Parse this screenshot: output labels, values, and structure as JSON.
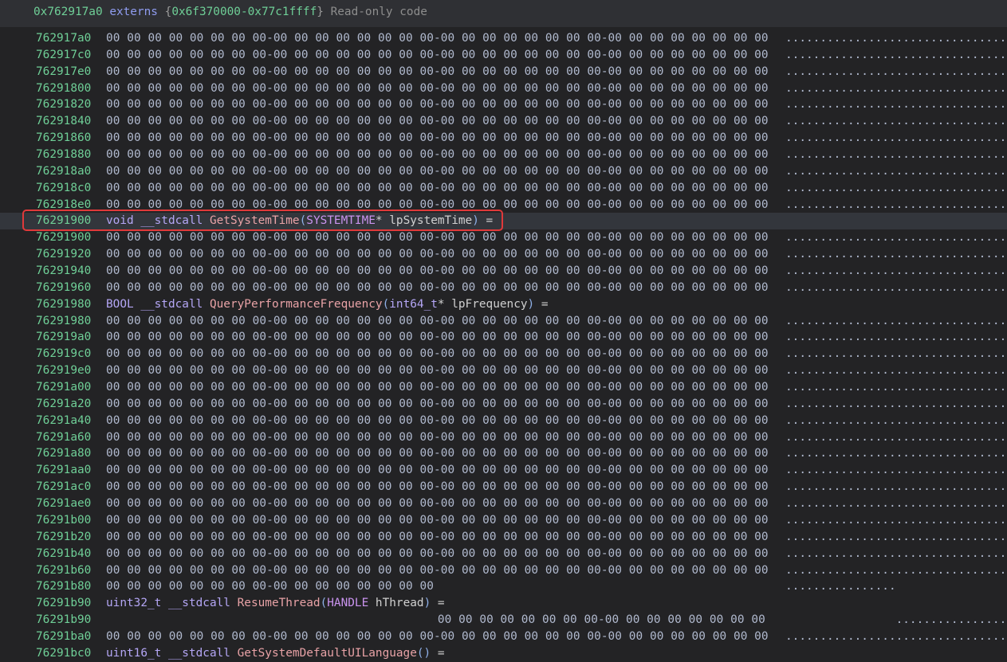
{
  "header": {
    "address": "0x762917a0",
    "segment": "externs",
    "brace_open": "{",
    "range": "0x6f370000-0x77c1ffff",
    "brace_close": "}",
    "description": "Read-only code"
  },
  "colors": {
    "address": "#6fcf97",
    "highlight_border": "#e0393a",
    "background": "#232325"
  },
  "highlighted_row": 11,
  "rows": [
    {
      "addr": "762917a0",
      "bytes": "00 00 00 00 00 00 00 00-00 00 00 00 00 00 00 00-00 00 00 00 00 00 00 00-00 00 00 00 00 00 00 00",
      "ascii": "................................"
    },
    {
      "addr": "762917c0",
      "bytes": "00 00 00 00 00 00 00 00-00 00 00 00 00 00 00 00-00 00 00 00 00 00 00 00-00 00 00 00 00 00 00 00",
      "ascii": "................................"
    },
    {
      "addr": "762917e0",
      "bytes": "00 00 00 00 00 00 00 00-00 00 00 00 00 00 00 00-00 00 00 00 00 00 00 00-00 00 00 00 00 00 00 00",
      "ascii": "................................"
    },
    {
      "addr": "76291800",
      "bytes": "00 00 00 00 00 00 00 00-00 00 00 00 00 00 00 00-00 00 00 00 00 00 00 00-00 00 00 00 00 00 00 00",
      "ascii": "................................"
    },
    {
      "addr": "76291820",
      "bytes": "00 00 00 00 00 00 00 00-00 00 00 00 00 00 00 00-00 00 00 00 00 00 00 00-00 00 00 00 00 00 00 00",
      "ascii": "................................"
    },
    {
      "addr": "76291840",
      "bytes": "00 00 00 00 00 00 00 00-00 00 00 00 00 00 00 00-00 00 00 00 00 00 00 00-00 00 00 00 00 00 00 00",
      "ascii": "................................"
    },
    {
      "addr": "76291860",
      "bytes": "00 00 00 00 00 00 00 00-00 00 00 00 00 00 00 00-00 00 00 00 00 00 00 00-00 00 00 00 00 00 00 00",
      "ascii": "................................"
    },
    {
      "addr": "76291880",
      "bytes": "00 00 00 00 00 00 00 00-00 00 00 00 00 00 00 00-00 00 00 00 00 00 00 00-00 00 00 00 00 00 00 00",
      "ascii": "................................"
    },
    {
      "addr": "762918a0",
      "bytes": "00 00 00 00 00 00 00 00-00 00 00 00 00 00 00 00-00 00 00 00 00 00 00 00-00 00 00 00 00 00 00 00",
      "ascii": "................................"
    },
    {
      "addr": "762918c0",
      "bytes": "00 00 00 00 00 00 00 00-00 00 00 00 00 00 00 00-00 00 00 00 00 00 00 00-00 00 00 00 00 00 00 00",
      "ascii": "................................"
    },
    {
      "addr": "762918e0",
      "bytes": "00 00 00 00 00 00 00 00-00 00 00 00 00 00 00 00-00 00 00 00 00 00 00 00-00 00 00 00 00 00 00 00",
      "ascii": "................................"
    },
    {
      "addr": "76291900",
      "sig": [
        {
          "text": "void",
          "role": "keyword"
        },
        {
          "text": " __stdcall ",
          "role": "keyword"
        },
        {
          "text": "GetSystemTime",
          "role": "function"
        },
        {
          "text": "(",
          "role": "punct"
        },
        {
          "text": "SYSTEMTIME",
          "role": "type"
        },
        {
          "text": "* lpSystemTime",
          "role": "param"
        },
        {
          "text": ")",
          "role": "punct"
        },
        {
          "text": " =",
          "role": "plain"
        }
      ]
    },
    {
      "addr": "76291900",
      "bytes": "00 00 00 00 00 00 00 00-00 00 00 00 00 00 00 00-00 00 00 00 00 00 00 00-00 00 00 00 00 00 00 00",
      "ascii": "................................"
    },
    {
      "addr": "76291920",
      "bytes": "00 00 00 00 00 00 00 00-00 00 00 00 00 00 00 00-00 00 00 00 00 00 00 00-00 00 00 00 00 00 00 00",
      "ascii": "................................"
    },
    {
      "addr": "76291940",
      "bytes": "00 00 00 00 00 00 00 00-00 00 00 00 00 00 00 00-00 00 00 00 00 00 00 00-00 00 00 00 00 00 00 00",
      "ascii": "................................"
    },
    {
      "addr": "76291960",
      "bytes": "00 00 00 00 00 00 00 00-00 00 00 00 00 00 00 00-00 00 00 00 00 00 00 00-00 00 00 00 00 00 00 00",
      "ascii": "................................"
    },
    {
      "addr": "76291980",
      "sig": [
        {
          "text": "BOOL",
          "role": "keyword"
        },
        {
          "text": " __stdcall ",
          "role": "keyword"
        },
        {
          "text": "QueryPerformanceFrequency",
          "role": "function"
        },
        {
          "text": "(",
          "role": "punct"
        },
        {
          "text": "int64_t",
          "role": "keyword"
        },
        {
          "text": "* lpFrequency",
          "role": "param"
        },
        {
          "text": ")",
          "role": "punct"
        },
        {
          "text": " =",
          "role": "plain"
        }
      ]
    },
    {
      "addr": "76291980",
      "bytes": "00 00 00 00 00 00 00 00-00 00 00 00 00 00 00 00-00 00 00 00 00 00 00 00-00 00 00 00 00 00 00 00",
      "ascii": "................................"
    },
    {
      "addr": "762919a0",
      "bytes": "00 00 00 00 00 00 00 00-00 00 00 00 00 00 00 00-00 00 00 00 00 00 00 00-00 00 00 00 00 00 00 00",
      "ascii": "................................"
    },
    {
      "addr": "762919c0",
      "bytes": "00 00 00 00 00 00 00 00-00 00 00 00 00 00 00 00-00 00 00 00 00 00 00 00-00 00 00 00 00 00 00 00",
      "ascii": "................................"
    },
    {
      "addr": "762919e0",
      "bytes": "00 00 00 00 00 00 00 00-00 00 00 00 00 00 00 00-00 00 00 00 00 00 00 00-00 00 00 00 00 00 00 00",
      "ascii": "................................"
    },
    {
      "addr": "76291a00",
      "bytes": "00 00 00 00 00 00 00 00-00 00 00 00 00 00 00 00-00 00 00 00 00 00 00 00-00 00 00 00 00 00 00 00",
      "ascii": "................................"
    },
    {
      "addr": "76291a20",
      "bytes": "00 00 00 00 00 00 00 00-00 00 00 00 00 00 00 00-00 00 00 00 00 00 00 00-00 00 00 00 00 00 00 00",
      "ascii": "................................"
    },
    {
      "addr": "76291a40",
      "bytes": "00 00 00 00 00 00 00 00-00 00 00 00 00 00 00 00-00 00 00 00 00 00 00 00-00 00 00 00 00 00 00 00",
      "ascii": "................................"
    },
    {
      "addr": "76291a60",
      "bytes": "00 00 00 00 00 00 00 00-00 00 00 00 00 00 00 00-00 00 00 00 00 00 00 00-00 00 00 00 00 00 00 00",
      "ascii": "................................"
    },
    {
      "addr": "76291a80",
      "bytes": "00 00 00 00 00 00 00 00-00 00 00 00 00 00 00 00-00 00 00 00 00 00 00 00-00 00 00 00 00 00 00 00",
      "ascii": "................................"
    },
    {
      "addr": "76291aa0",
      "bytes": "00 00 00 00 00 00 00 00-00 00 00 00 00 00 00 00-00 00 00 00 00 00 00 00-00 00 00 00 00 00 00 00",
      "ascii": "................................"
    },
    {
      "addr": "76291ac0",
      "bytes": "00 00 00 00 00 00 00 00-00 00 00 00 00 00 00 00-00 00 00 00 00 00 00 00-00 00 00 00 00 00 00 00",
      "ascii": "................................"
    },
    {
      "addr": "76291ae0",
      "bytes": "00 00 00 00 00 00 00 00-00 00 00 00 00 00 00 00-00 00 00 00 00 00 00 00-00 00 00 00 00 00 00 00",
      "ascii": "................................"
    },
    {
      "addr": "76291b00",
      "bytes": "00 00 00 00 00 00 00 00-00 00 00 00 00 00 00 00-00 00 00 00 00 00 00 00-00 00 00 00 00 00 00 00",
      "ascii": "................................"
    },
    {
      "addr": "76291b20",
      "bytes": "00 00 00 00 00 00 00 00-00 00 00 00 00 00 00 00-00 00 00 00 00 00 00 00-00 00 00 00 00 00 00 00",
      "ascii": "................................"
    },
    {
      "addr": "76291b40",
      "bytes": "00 00 00 00 00 00 00 00-00 00 00 00 00 00 00 00-00 00 00 00 00 00 00 00-00 00 00 00 00 00 00 00",
      "ascii": "................................"
    },
    {
      "addr": "76291b60",
      "bytes": "00 00 00 00 00 00 00 00-00 00 00 00 00 00 00 00-00 00 00 00 00 00 00 00-00 00 00 00 00 00 00 00",
      "ascii": "................................"
    },
    {
      "addr": "76291b80",
      "bytes": "00 00 00 00 00 00 00 00-00 00 00 00 00 00 00 00",
      "ascii": "................"
    },
    {
      "addr": "76291b90",
      "sig": [
        {
          "text": "uint32_t",
          "role": "keyword"
        },
        {
          "text": " __stdcall ",
          "role": "keyword"
        },
        {
          "text": "ResumeThread",
          "role": "function"
        },
        {
          "text": "(",
          "role": "punct"
        },
        {
          "text": "HANDLE",
          "role": "type"
        },
        {
          "text": " hThread",
          "role": "param"
        },
        {
          "text": ")",
          "role": "punct"
        },
        {
          "text": " =",
          "role": "plain"
        }
      ]
    },
    {
      "addr": "76291b90",
      "start_byte": 16,
      "bytes": "00 00 00 00 00 00 00 00-00 00 00 00 00 00 00 00",
      "ascii": "................"
    },
    {
      "addr": "76291ba0",
      "bytes": "00 00 00 00 00 00 00 00-00 00 00 00 00 00 00 00-00 00 00 00 00 00 00 00-00 00 00 00 00 00 00 00",
      "ascii": "................................"
    },
    {
      "addr": "76291bc0",
      "sig": [
        {
          "text": "uint16_t",
          "role": "keyword"
        },
        {
          "text": " __stdcall ",
          "role": "keyword"
        },
        {
          "text": "GetSystemDefaultUILanguage",
          "role": "function"
        },
        {
          "text": "()",
          "role": "punct"
        },
        {
          "text": " =",
          "role": "plain"
        }
      ]
    }
  ]
}
